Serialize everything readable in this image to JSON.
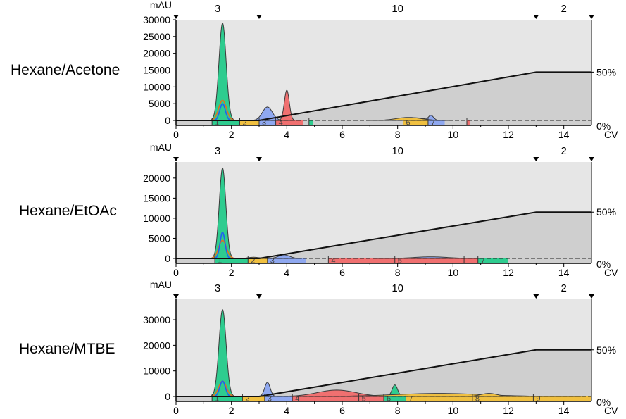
{
  "figure": {
    "solvents": [
      "Hexane/Acetone",
      "Hexane/EtOAc",
      "Hexane/MTBE"
    ],
    "y_unit": "mAU",
    "x_unit": "CV",
    "percent_labels": [
      "50%",
      "0%"
    ],
    "segment_labels": [
      "3",
      "10",
      "2"
    ]
  },
  "chart_data": [
    {
      "type": "area",
      "panel": "Hexane/Acetone",
      "ylabel": "mAU",
      "xlabel": "CV",
      "xlim": [
        0,
        15
      ],
      "ylim": [
        -1000,
        30000
      ],
      "x_ticks": [
        0,
        2,
        4,
        6,
        8,
        10,
        12,
        14
      ],
      "y_ticks": [
        0,
        5000,
        10000,
        15000,
        20000,
        25000,
        30000
      ],
      "y_tick_labels": [
        "0",
        "5000",
        "10000",
        "15000",
        "20000",
        "25000",
        "30000"
      ],
      "gradient": {
        "points": [
          [
            0,
            0
          ],
          [
            3,
            0
          ],
          [
            13,
            50
          ],
          [
            15,
            50
          ]
        ],
        "labels": [
          "50%",
          "0%"
        ]
      },
      "segments": [
        {
          "label": "3",
          "end": 3
        },
        {
          "label": "10",
          "end": 13
        },
        {
          "label": "2",
          "end": 15
        }
      ],
      "series": [
        {
          "color": "#2ecc8f",
          "peaks": [
            {
              "center": 1.68,
              "height": 29000,
              "width": 0.13
            }
          ]
        },
        {
          "color": "#8fa8f0",
          "peaks": [
            {
              "center": 3.3,
              "height": 4000,
              "width": 0.18
            },
            {
              "center": 8.6,
              "height": 800,
              "width": 0.4
            },
            {
              "center": 9.2,
              "height": 1500,
              "width": 0.1
            }
          ]
        },
        {
          "color": "#f07070",
          "peaks": [
            {
              "center": 4.0,
              "height": 9000,
              "width": 0.09
            }
          ]
        },
        {
          "color": "#f0c040",
          "peaks": [
            {
              "center": 8.4,
              "height": 900,
              "width": 0.45
            }
          ]
        }
      ],
      "inner_traces": [
        {
          "color": "#e07020",
          "peaks": [
            {
              "center": 1.68,
              "height": 6000,
              "width": 0.14
            }
          ]
        },
        {
          "color": "#2060f0",
          "peaks": [
            {
              "center": 1.68,
              "height": 5000,
              "width": 0.1
            }
          ]
        }
      ],
      "fractions": [
        {
          "label": "1",
          "start": 1.3,
          "end": 2.3,
          "color": "#2ecc8f"
        },
        {
          "label": "2",
          "start": 2.3,
          "end": 3.0,
          "color": "#f0c040"
        },
        {
          "label": "3",
          "start": 3.0,
          "end": 3.6,
          "color": "#8fa8f0"
        },
        {
          "label": "4",
          "start": 3.6,
          "end": 4.6,
          "color": "#f07070"
        },
        {
          "label": "",
          "start": 4.8,
          "end": 4.95,
          "color": "#2ecc8f"
        },
        {
          "label": "6",
          "start": 8.2,
          "end": 9.1,
          "color": "#f0c040"
        },
        {
          "label": "7",
          "start": 9.1,
          "end": 9.7,
          "color": "#8fa8f0"
        },
        {
          "label": "",
          "start": 10.5,
          "end": 10.6,
          "color": "#f07070"
        }
      ]
    },
    {
      "type": "area",
      "panel": "Hexane/EtOAc",
      "ylabel": "mAU",
      "xlabel": "CV",
      "xlim": [
        0,
        15
      ],
      "ylim": [
        -1000,
        24000
      ],
      "x_ticks": [
        0,
        2,
        4,
        6,
        8,
        10,
        12,
        14
      ],
      "y_ticks": [
        0,
        5000,
        10000,
        15000,
        20000
      ],
      "y_tick_labels": [
        "0",
        "5000",
        "10000",
        "15000",
        "20000"
      ],
      "gradient": {
        "points": [
          [
            0,
            0
          ],
          [
            3,
            0
          ],
          [
            13,
            50
          ],
          [
            15,
            50
          ]
        ],
        "labels": [
          "50%",
          "0%"
        ]
      },
      "segments": [
        {
          "label": "3",
          "end": 3
        },
        {
          "label": "10",
          "end": 13
        },
        {
          "label": "2",
          "end": 15
        }
      ],
      "series": [
        {
          "color": "#2ecc8f",
          "peaks": [
            {
              "center": 1.68,
              "height": 22500,
              "width": 0.12
            }
          ]
        },
        {
          "color": "#8fa8f0",
          "peaks": [
            {
              "center": 3.9,
              "height": 900,
              "width": 0.2
            },
            {
              "center": 9.2,
              "height": 400,
              "width": 0.6
            }
          ]
        },
        {
          "color": "#f0c040",
          "peaks": [
            {
              "center": 2.8,
              "height": 300,
              "width": 0.2
            }
          ]
        }
      ],
      "inner_traces": [
        {
          "color": "#e07020",
          "peaks": [
            {
              "center": 1.68,
              "height": 4500,
              "width": 0.14
            }
          ]
        },
        {
          "color": "#2060f0",
          "peaks": [
            {
              "center": 1.68,
              "height": 6500,
              "width": 0.09
            }
          ]
        }
      ],
      "fractions": [
        {
          "label": "1",
          "start": 1.4,
          "end": 2.6,
          "color": "#2ecc8f"
        },
        {
          "label": "2",
          "start": 2.6,
          "end": 3.3,
          "color": "#f0c040"
        },
        {
          "label": "3",
          "start": 3.3,
          "end": 4.7,
          "color": "#8fa8f0"
        },
        {
          "label": "4",
          "start": 5.5,
          "end": 7.9,
          "color": "#f07070"
        },
        {
          "label": "5",
          "start": 7.9,
          "end": 10.4,
          "color": "#f07070"
        },
        {
          "label": "",
          "start": 10.4,
          "end": 10.9,
          "color": "#f07070"
        },
        {
          "label": "7",
          "start": 10.9,
          "end": 12.0,
          "color": "#2ecc8f"
        }
      ]
    },
    {
      "type": "area",
      "panel": "Hexane/MTBE",
      "ylabel": "mAU",
      "xlabel": "CV",
      "xlim": [
        0,
        15
      ],
      "ylim": [
        -1000,
        38000
      ],
      "x_ticks": [
        0,
        2,
        4,
        6,
        8,
        10,
        12,
        14
      ],
      "y_ticks": [
        0,
        10000,
        20000,
        30000
      ],
      "y_tick_labels": [
        "0",
        "10000",
        "20000",
        "30000"
      ],
      "gradient": {
        "points": [
          [
            0,
            0
          ],
          [
            3,
            0
          ],
          [
            13,
            50
          ],
          [
            15,
            50
          ]
        ],
        "labels": [
          "50%",
          "0%"
        ]
      },
      "segments": [
        {
          "label": "3",
          "end": 3
        },
        {
          "label": "10",
          "end": 13
        },
        {
          "label": "2",
          "end": 15
        }
      ],
      "series": [
        {
          "color": "#2ecc8f",
          "peaks": [
            {
              "center": 1.68,
              "height": 34000,
              "width": 0.13
            },
            {
              "center": 7.9,
              "height": 4500,
              "width": 0.1
            }
          ]
        },
        {
          "color": "#8fa8f0",
          "peaks": [
            {
              "center": 3.3,
              "height": 5500,
              "width": 0.1
            }
          ]
        },
        {
          "color": "#f07070",
          "peaks": [
            {
              "center": 5.8,
              "height": 2500,
              "width": 0.7
            }
          ]
        },
        {
          "color": "#f0c040",
          "peaks": [
            {
              "center": 9.5,
              "height": 1200,
              "width": 1.6
            },
            {
              "center": 11.3,
              "height": 1200,
              "width": 0.3
            }
          ]
        }
      ],
      "inner_traces": [
        {
          "color": "#e07020",
          "peaks": [
            {
              "center": 1.68,
              "height": 6000,
              "width": 0.14
            }
          ]
        },
        {
          "color": "#2060f0",
          "peaks": [
            {
              "center": 1.68,
              "height": 6000,
              "width": 0.1
            }
          ]
        }
      ],
      "fractions": [
        {
          "label": "1",
          "start": 1.3,
          "end": 2.4,
          "color": "#2ecc8f"
        },
        {
          "label": "2",
          "start": 2.4,
          "end": 3.2,
          "color": "#f0c040"
        },
        {
          "label": "3",
          "start": 3.2,
          "end": 4.2,
          "color": "#8fa8f0"
        },
        {
          "label": "4",
          "start": 4.2,
          "end": 6.6,
          "color": "#f07070"
        },
        {
          "label": "5",
          "start": 6.6,
          "end": 7.5,
          "color": "#f07070"
        },
        {
          "label": "6",
          "start": 7.5,
          "end": 8.3,
          "color": "#2ecc8f"
        },
        {
          "label": "7",
          "start": 8.3,
          "end": 10.7,
          "color": "#f0c040"
        },
        {
          "label": "8",
          "start": 10.7,
          "end": 12.9,
          "color": "#f0c040"
        },
        {
          "label": "9",
          "start": 12.9,
          "end": 15.0,
          "color": "#f0c040"
        }
      ]
    }
  ]
}
